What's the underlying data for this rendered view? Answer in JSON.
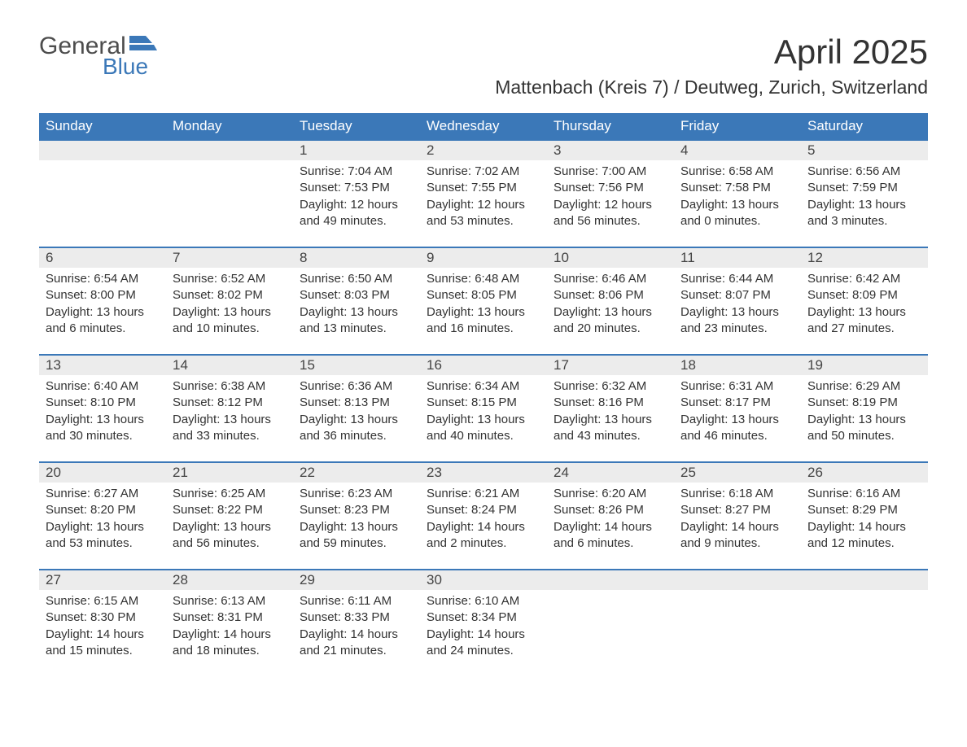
{
  "brand": {
    "line1": "General",
    "line2": "Blue",
    "flag_color": "#3b78b8"
  },
  "header": {
    "month_title": "April 2025",
    "location": "Mattenbach (Kreis 7) / Deutweg, Zurich, Switzerland"
  },
  "style": {
    "header_bg": "#3b78b8",
    "header_text": "#ffffff",
    "daynum_bg": "#ececec",
    "body_text": "#333333",
    "week_border": "#3b78b8",
    "month_title_fontsize": 42,
    "location_fontsize": 23,
    "weekday_fontsize": 17,
    "cell_fontsize": 15
  },
  "weekdays": [
    "Sunday",
    "Monday",
    "Tuesday",
    "Wednesday",
    "Thursday",
    "Friday",
    "Saturday"
  ],
  "labels": {
    "sunrise": "Sunrise:",
    "sunset": "Sunset:",
    "daylight": "Daylight:"
  },
  "weeks": [
    [
      null,
      null,
      {
        "n": "1",
        "sunrise": "7:04 AM",
        "sunset": "7:53 PM",
        "daylight": "12 hours and 49 minutes."
      },
      {
        "n": "2",
        "sunrise": "7:02 AM",
        "sunset": "7:55 PM",
        "daylight": "12 hours and 53 minutes."
      },
      {
        "n": "3",
        "sunrise": "7:00 AM",
        "sunset": "7:56 PM",
        "daylight": "12 hours and 56 minutes."
      },
      {
        "n": "4",
        "sunrise": "6:58 AM",
        "sunset": "7:58 PM",
        "daylight": "13 hours and 0 minutes."
      },
      {
        "n": "5",
        "sunrise": "6:56 AM",
        "sunset": "7:59 PM",
        "daylight": "13 hours and 3 minutes."
      }
    ],
    [
      {
        "n": "6",
        "sunrise": "6:54 AM",
        "sunset": "8:00 PM",
        "daylight": "13 hours and 6 minutes."
      },
      {
        "n": "7",
        "sunrise": "6:52 AM",
        "sunset": "8:02 PM",
        "daylight": "13 hours and 10 minutes."
      },
      {
        "n": "8",
        "sunrise": "6:50 AM",
        "sunset": "8:03 PM",
        "daylight": "13 hours and 13 minutes."
      },
      {
        "n": "9",
        "sunrise": "6:48 AM",
        "sunset": "8:05 PM",
        "daylight": "13 hours and 16 minutes."
      },
      {
        "n": "10",
        "sunrise": "6:46 AM",
        "sunset": "8:06 PM",
        "daylight": "13 hours and 20 minutes."
      },
      {
        "n": "11",
        "sunrise": "6:44 AM",
        "sunset": "8:07 PM",
        "daylight": "13 hours and 23 minutes."
      },
      {
        "n": "12",
        "sunrise": "6:42 AM",
        "sunset": "8:09 PM",
        "daylight": "13 hours and 27 minutes."
      }
    ],
    [
      {
        "n": "13",
        "sunrise": "6:40 AM",
        "sunset": "8:10 PM",
        "daylight": "13 hours and 30 minutes."
      },
      {
        "n": "14",
        "sunrise": "6:38 AM",
        "sunset": "8:12 PM",
        "daylight": "13 hours and 33 minutes."
      },
      {
        "n": "15",
        "sunrise": "6:36 AM",
        "sunset": "8:13 PM",
        "daylight": "13 hours and 36 minutes."
      },
      {
        "n": "16",
        "sunrise": "6:34 AM",
        "sunset": "8:15 PM",
        "daylight": "13 hours and 40 minutes."
      },
      {
        "n": "17",
        "sunrise": "6:32 AM",
        "sunset": "8:16 PM",
        "daylight": "13 hours and 43 minutes."
      },
      {
        "n": "18",
        "sunrise": "6:31 AM",
        "sunset": "8:17 PM",
        "daylight": "13 hours and 46 minutes."
      },
      {
        "n": "19",
        "sunrise": "6:29 AM",
        "sunset": "8:19 PM",
        "daylight": "13 hours and 50 minutes."
      }
    ],
    [
      {
        "n": "20",
        "sunrise": "6:27 AM",
        "sunset": "8:20 PM",
        "daylight": "13 hours and 53 minutes."
      },
      {
        "n": "21",
        "sunrise": "6:25 AM",
        "sunset": "8:22 PM",
        "daylight": "13 hours and 56 minutes."
      },
      {
        "n": "22",
        "sunrise": "6:23 AM",
        "sunset": "8:23 PM",
        "daylight": "13 hours and 59 minutes."
      },
      {
        "n": "23",
        "sunrise": "6:21 AM",
        "sunset": "8:24 PM",
        "daylight": "14 hours and 2 minutes."
      },
      {
        "n": "24",
        "sunrise": "6:20 AM",
        "sunset": "8:26 PM",
        "daylight": "14 hours and 6 minutes."
      },
      {
        "n": "25",
        "sunrise": "6:18 AM",
        "sunset": "8:27 PM",
        "daylight": "14 hours and 9 minutes."
      },
      {
        "n": "26",
        "sunrise": "6:16 AM",
        "sunset": "8:29 PM",
        "daylight": "14 hours and 12 minutes."
      }
    ],
    [
      {
        "n": "27",
        "sunrise": "6:15 AM",
        "sunset": "8:30 PM",
        "daylight": "14 hours and 15 minutes."
      },
      {
        "n": "28",
        "sunrise": "6:13 AM",
        "sunset": "8:31 PM",
        "daylight": "14 hours and 18 minutes."
      },
      {
        "n": "29",
        "sunrise": "6:11 AM",
        "sunset": "8:33 PM",
        "daylight": "14 hours and 21 minutes."
      },
      {
        "n": "30",
        "sunrise": "6:10 AM",
        "sunset": "8:34 PM",
        "daylight": "14 hours and 24 minutes."
      },
      null,
      null,
      null
    ]
  ]
}
